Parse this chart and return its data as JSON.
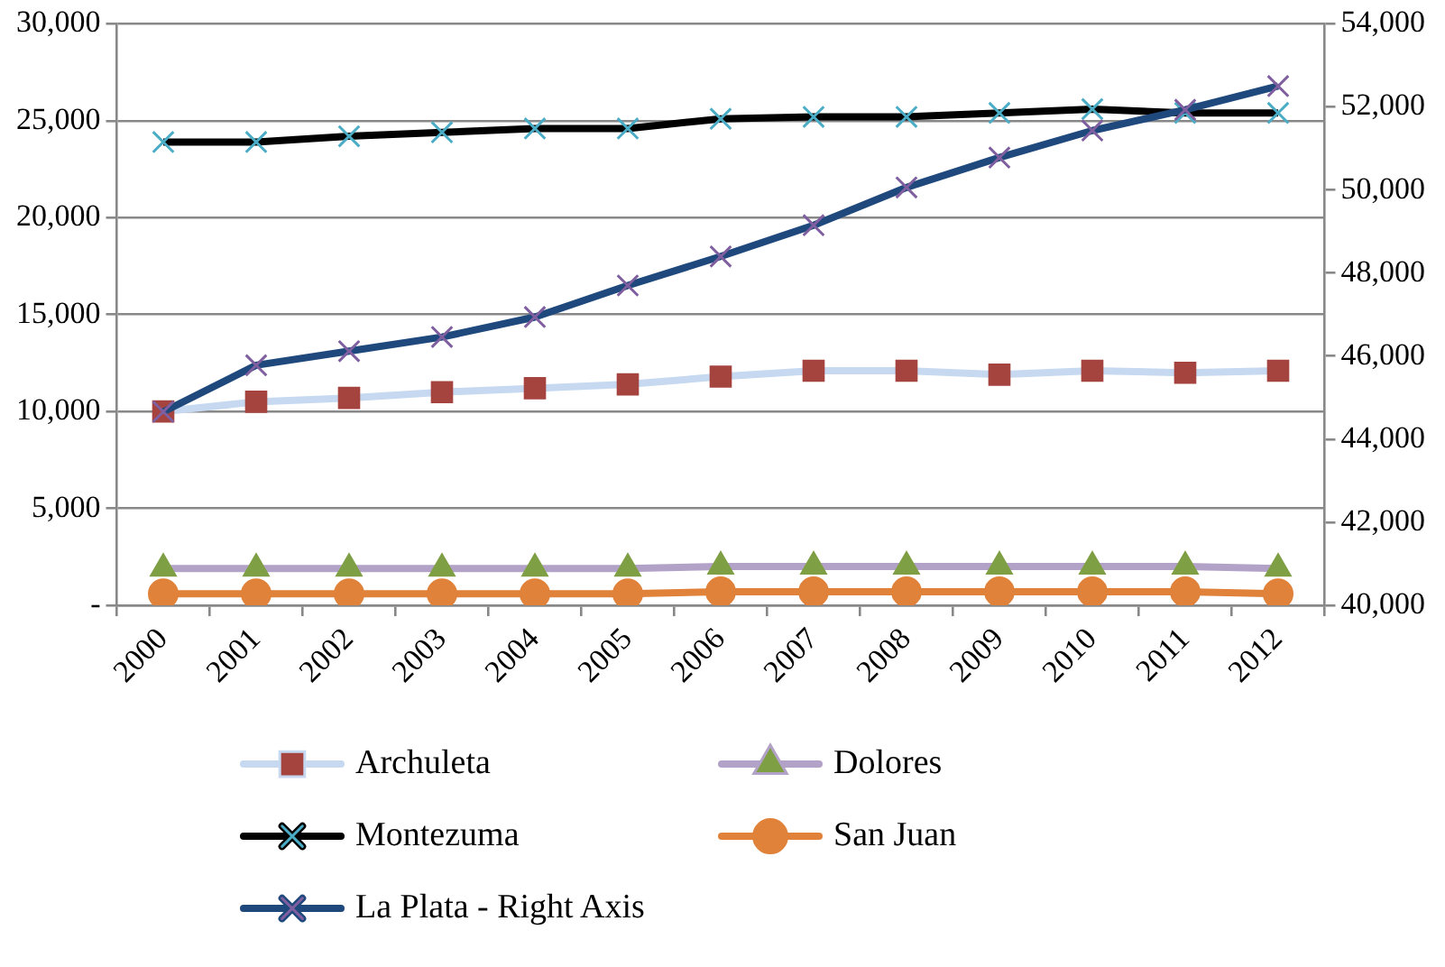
{
  "chart_data": {
    "type": "line",
    "categories": [
      "2000",
      "2001",
      "2002",
      "2003",
      "2004",
      "2005",
      "2006",
      "2007",
      "2008",
      "2009",
      "2010",
      "2011",
      "2012"
    ],
    "series": [
      {
        "name": "Archuleta",
        "color": "#c6d9f1",
        "marker": "square",
        "values": [
          10000,
          10500,
          10700,
          11000,
          11200,
          11400,
          11800,
          12100,
          12100,
          11900,
          12100,
          12000,
          12100
        ]
      },
      {
        "name": "Dolores",
        "color": "#b3a2c7",
        "marker": "triangle",
        "values": [
          1900,
          1900,
          1900,
          1900,
          1900,
          1900,
          2000,
          2000,
          2000,
          2000,
          2000,
          2000,
          1900
        ]
      },
      {
        "name": "Montezuma",
        "color": "#000000",
        "marker": "cross",
        "values": [
          23900,
          23900,
          24200,
          24400,
          24600,
          24600,
          25100,
          25200,
          25200,
          25400,
          25600,
          25400,
          25400
        ]
      },
      {
        "name": "San Juan",
        "color": "#e0823a",
        "marker": "circle",
        "values": [
          600,
          600,
          600,
          600,
          600,
          600,
          700,
          700,
          700,
          700,
          700,
          700,
          600
        ]
      },
      {
        "name": "La Plata - Right Axis",
        "color": "#1f497d",
        "marker": "cross",
        "axis": "y2",
        "values": [
          44660,
          45780,
          46120,
          46460,
          46940,
          47700,
          48400,
          49150,
          50060,
          50780,
          51430,
          51930,
          52500
        ]
      }
    ],
    "ylim": [
      0,
      30000
    ],
    "yticks": [
      {
        "value": 0,
        "label": "-"
      },
      {
        "value": 5000,
        "label": "5,000"
      },
      {
        "value": 10000,
        "label": "10,000"
      },
      {
        "value": 15000,
        "label": "15,000"
      },
      {
        "value": 20000,
        "label": "20,000"
      },
      {
        "value": 25000,
        "label": "25,000"
      },
      {
        "value": 30000,
        "label": "30,000"
      }
    ],
    "y2lim": [
      40000,
      54000
    ],
    "y2ticks": [
      {
        "value": 40000,
        "label": "40,000"
      },
      {
        "value": 42000,
        "label": "42,000"
      },
      {
        "value": 44000,
        "label": "44,000"
      },
      {
        "value": 46000,
        "label": "46,000"
      },
      {
        "value": 48000,
        "label": "48,000"
      },
      {
        "value": 50000,
        "label": "50,000"
      },
      {
        "value": 52000,
        "label": "52,000"
      },
      {
        "value": 54000,
        "label": "54,000"
      }
    ],
    "grid": "y",
    "legend": "bottom"
  }
}
